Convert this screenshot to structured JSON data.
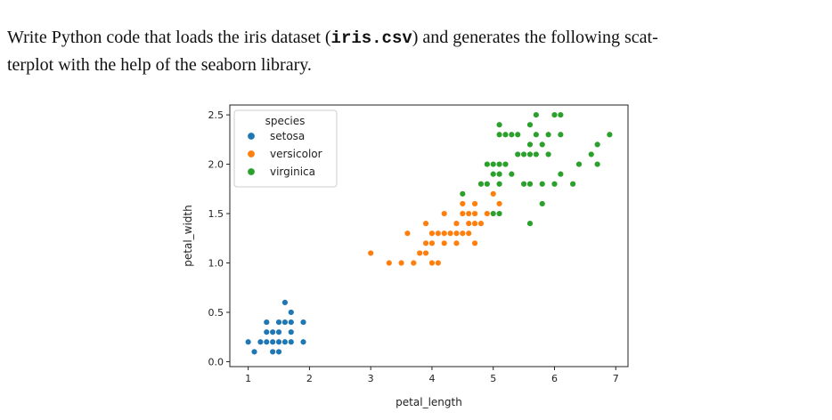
{
  "prompt": {
    "line1_before": "Write Python code that loads the iris dataset (",
    "filename": "iris.csv",
    "line1_after": ") and generates the following scat-",
    "line2": "terplot with the help of the seaborn library."
  },
  "chart_data": {
    "type": "scatter",
    "xlabel": "petal_length",
    "ylabel": "petal_width",
    "xlim": [
      0.7,
      7.2
    ],
    "ylim": [
      -0.05,
      2.6
    ],
    "xticks": [
      1,
      2,
      3,
      4,
      5,
      6,
      7
    ],
    "yticks": [
      0.0,
      0.5,
      1.0,
      1.5,
      2.0,
      2.5
    ],
    "ytick_labels": [
      "0.0",
      "0.5",
      "1.0",
      "1.5",
      "2.0",
      "2.5"
    ],
    "grid": false,
    "legend": {
      "title": "species",
      "position": "top-left"
    },
    "series": [
      {
        "name": "setosa",
        "color": "#1f77b4",
        "points": [
          [
            1.4,
            0.2
          ],
          [
            1.4,
            0.2
          ],
          [
            1.3,
            0.2
          ],
          [
            1.5,
            0.2
          ],
          [
            1.4,
            0.2
          ],
          [
            1.7,
            0.4
          ],
          [
            1.4,
            0.3
          ],
          [
            1.5,
            0.2
          ],
          [
            1.4,
            0.2
          ],
          [
            1.5,
            0.1
          ],
          [
            1.5,
            0.2
          ],
          [
            1.6,
            0.2
          ],
          [
            1.4,
            0.1
          ],
          [
            1.1,
            0.1
          ],
          [
            1.2,
            0.2
          ],
          [
            1.5,
            0.4
          ],
          [
            1.3,
            0.4
          ],
          [
            1.4,
            0.3
          ],
          [
            1.7,
            0.3
          ],
          [
            1.5,
            0.3
          ],
          [
            1.7,
            0.2
          ],
          [
            1.5,
            0.4
          ],
          [
            1.0,
            0.2
          ],
          [
            1.7,
            0.5
          ],
          [
            1.9,
            0.2
          ],
          [
            1.6,
            0.2
          ],
          [
            1.6,
            0.4
          ],
          [
            1.5,
            0.2
          ],
          [
            1.4,
            0.2
          ],
          [
            1.6,
            0.2
          ],
          [
            1.6,
            0.2
          ],
          [
            1.5,
            0.4
          ],
          [
            1.5,
            0.1
          ],
          [
            1.4,
            0.2
          ],
          [
            1.5,
            0.2
          ],
          [
            1.2,
            0.2
          ],
          [
            1.3,
            0.2
          ],
          [
            1.4,
            0.1
          ],
          [
            1.3,
            0.2
          ],
          [
            1.5,
            0.2
          ],
          [
            1.3,
            0.3
          ],
          [
            1.3,
            0.3
          ],
          [
            1.3,
            0.2
          ],
          [
            1.6,
            0.6
          ],
          [
            1.9,
            0.4
          ],
          [
            1.4,
            0.3
          ],
          [
            1.6,
            0.2
          ],
          [
            1.4,
            0.2
          ],
          [
            1.5,
            0.2
          ],
          [
            1.4,
            0.2
          ]
        ]
      },
      {
        "name": "versicolor",
        "color": "#ff7f0e",
        "points": [
          [
            4.7,
            1.4
          ],
          [
            4.5,
            1.5
          ],
          [
            4.9,
            1.5
          ],
          [
            4.0,
            1.3
          ],
          [
            4.6,
            1.5
          ],
          [
            4.5,
            1.3
          ],
          [
            4.7,
            1.6
          ],
          [
            3.3,
            1.0
          ],
          [
            4.6,
            1.3
          ],
          [
            3.9,
            1.4
          ],
          [
            3.5,
            1.0
          ],
          [
            4.2,
            1.5
          ],
          [
            4.0,
            1.0
          ],
          [
            4.7,
            1.4
          ],
          [
            3.6,
            1.3
          ],
          [
            4.4,
            1.4
          ],
          [
            4.5,
            1.5
          ],
          [
            4.1,
            1.0
          ],
          [
            4.5,
            1.5
          ],
          [
            3.9,
            1.1
          ],
          [
            4.8,
            1.8
          ],
          [
            4.0,
            1.3
          ],
          [
            4.9,
            1.5
          ],
          [
            4.7,
            1.2
          ],
          [
            4.3,
            1.3
          ],
          [
            4.4,
            1.4
          ],
          [
            4.8,
            1.4
          ],
          [
            5.0,
            1.7
          ],
          [
            4.5,
            1.5
          ],
          [
            3.5,
            1.0
          ],
          [
            3.8,
            1.1
          ],
          [
            3.7,
            1.0
          ],
          [
            3.9,
            1.2
          ],
          [
            5.1,
            1.6
          ],
          [
            4.5,
            1.5
          ],
          [
            4.5,
            1.6
          ],
          [
            4.7,
            1.5
          ],
          [
            4.4,
            1.3
          ],
          [
            4.1,
            1.3
          ],
          [
            4.0,
            1.3
          ],
          [
            4.4,
            1.2
          ],
          [
            4.6,
            1.4
          ],
          [
            4.0,
            1.2
          ],
          [
            3.3,
            1.0
          ],
          [
            4.2,
            1.3
          ],
          [
            4.2,
            1.2
          ],
          [
            4.2,
            1.3
          ],
          [
            4.3,
            1.3
          ],
          [
            3.0,
            1.1
          ],
          [
            4.1,
            1.3
          ]
        ]
      },
      {
        "name": "virginica",
        "color": "#2ca02c",
        "points": [
          [
            6.0,
            2.5
          ],
          [
            5.1,
            1.9
          ],
          [
            5.9,
            2.1
          ],
          [
            5.6,
            1.8
          ],
          [
            5.8,
            2.2
          ],
          [
            6.6,
            2.1
          ],
          [
            4.5,
            1.7
          ],
          [
            6.3,
            1.8
          ],
          [
            5.8,
            1.8
          ],
          [
            6.1,
            2.5
          ],
          [
            5.1,
            2.0
          ],
          [
            5.3,
            1.9
          ],
          [
            5.5,
            2.1
          ],
          [
            5.0,
            2.0
          ],
          [
            5.1,
            2.4
          ],
          [
            5.3,
            2.3
          ],
          [
            5.5,
            1.8
          ],
          [
            6.7,
            2.2
          ],
          [
            6.9,
            2.3
          ],
          [
            5.0,
            1.5
          ],
          [
            5.7,
            2.3
          ],
          [
            4.9,
            2.0
          ],
          [
            6.7,
            2.0
          ],
          [
            4.9,
            1.8
          ],
          [
            5.7,
            2.1
          ],
          [
            6.0,
            1.8
          ],
          [
            4.8,
            1.8
          ],
          [
            4.9,
            1.8
          ],
          [
            5.6,
            2.1
          ],
          [
            5.8,
            1.6
          ],
          [
            6.1,
            1.9
          ],
          [
            6.4,
            2.0
          ],
          [
            5.6,
            2.2
          ],
          [
            5.1,
            1.5
          ],
          [
            5.6,
            1.4
          ],
          [
            6.1,
            2.3
          ],
          [
            5.6,
            2.4
          ],
          [
            5.5,
            1.8
          ],
          [
            4.8,
            1.8
          ],
          [
            5.4,
            2.1
          ],
          [
            5.6,
            2.4
          ],
          [
            5.1,
            2.3
          ],
          [
            5.1,
            1.9
          ],
          [
            5.9,
            2.3
          ],
          [
            5.7,
            2.5
          ],
          [
            5.2,
            2.3
          ],
          [
            5.0,
            1.9
          ],
          [
            5.2,
            2.0
          ],
          [
            5.4,
            2.3
          ],
          [
            5.1,
            1.8
          ]
        ]
      }
    ]
  }
}
